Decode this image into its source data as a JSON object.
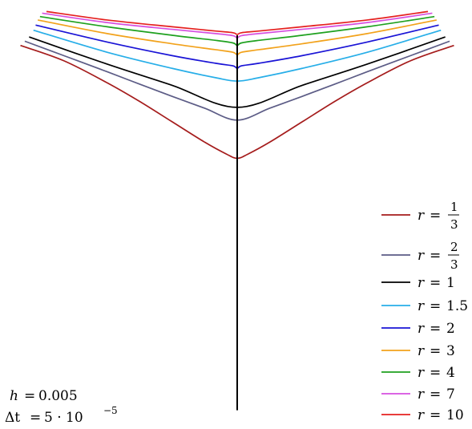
{
  "chart_data": {
    "type": "line",
    "title": "",
    "xlabel": "",
    "ylabel": "",
    "grid": false,
    "axes_visible": false,
    "legend_position": "right",
    "stem_x": 0.0,
    "series": [
      {
        "name": "r = 1/3",
        "r_num": "1",
        "r_den": "3",
        "color": "#a51c1c",
        "x": [
          -1.0,
          -0.8,
          -0.6,
          -0.45,
          -0.3,
          -0.15,
          -0.05,
          0.0,
          0.05,
          0.15,
          0.3,
          0.45,
          0.6,
          0.8,
          1.0
        ],
        "y": [
          -0.07,
          -0.16,
          -0.29,
          -0.4,
          -0.52,
          -0.64,
          -0.71,
          -0.735,
          -0.71,
          -0.64,
          -0.52,
          -0.4,
          -0.29,
          -0.16,
          -0.07
        ]
      },
      {
        "name": "r = 2/3",
        "r_num": "2",
        "r_den": "3",
        "color": "#5c5c86",
        "x": [
          -0.98,
          -0.8,
          -0.6,
          -0.45,
          -0.3,
          -0.15,
          0.0,
          0.15,
          0.3,
          0.45,
          0.6,
          0.8,
          0.98
        ],
        "y": [
          -0.045,
          -0.13,
          -0.225,
          -0.298,
          -0.37,
          -0.44,
          -0.51,
          -0.44,
          -0.37,
          -0.298,
          -0.225,
          -0.13,
          -0.045
        ]
      },
      {
        "name": "r = 1",
        "r_num": "",
        "r_den": "",
        "r_value": "1",
        "color": "#000000",
        "x": [
          -0.96,
          -0.6,
          -0.3,
          0.0,
          0.3,
          0.6,
          0.96
        ],
        "y": [
          -0.02,
          -0.18,
          -0.305,
          -0.435,
          -0.305,
          -0.18,
          -0.02
        ]
      },
      {
        "name": "r = 1.5",
        "r_num": "",
        "r_den": "",
        "r_value": "1.5",
        "color": "#27aee8",
        "x": [
          -0.94,
          -0.6,
          -0.3,
          -0.1,
          0.0,
          0.1,
          0.3,
          0.6,
          0.94
        ],
        "y": [
          0.02,
          -0.11,
          -0.205,
          -0.26,
          -0.28,
          -0.26,
          -0.205,
          -0.11,
          0.02
        ]
      },
      {
        "name": "r = 2",
        "r_num": "",
        "r_den": "",
        "r_value": "2",
        "color": "#1a14d6",
        "x": [
          -0.93,
          -0.6,
          -0.3,
          -0.1,
          -0.02,
          0.0,
          0.02,
          0.1,
          0.3,
          0.6,
          0.93
        ],
        "y": [
          0.05,
          -0.05,
          -0.13,
          -0.175,
          -0.19,
          -0.205,
          -0.19,
          -0.175,
          -0.13,
          -0.05,
          0.05
        ]
      },
      {
        "name": "r = 3",
        "r_num": "",
        "r_den": "",
        "r_value": "3",
        "color": "#f2a21b",
        "x": [
          -0.92,
          -0.6,
          -0.3,
          -0.1,
          -0.02,
          0.0,
          0.02,
          0.1,
          0.3,
          0.6,
          0.92
        ],
        "y": [
          0.08,
          0.0,
          -0.06,
          -0.095,
          -0.11,
          -0.125,
          -0.11,
          -0.095,
          -0.06,
          0.0,
          0.08
        ]
      },
      {
        "name": "r = 4",
        "r_num": "",
        "r_den": "",
        "r_value": "4",
        "color": "#1fa11f",
        "x": [
          -0.91,
          -0.6,
          -0.3,
          -0.1,
          -0.02,
          0.0,
          0.02,
          0.1,
          0.3,
          0.6,
          0.91
        ],
        "y": [
          0.1,
          0.04,
          -0.01,
          -0.04,
          -0.055,
          -0.07,
          -0.055,
          -0.04,
          -0.01,
          0.04,
          0.1
        ]
      },
      {
        "name": "r = 7",
        "r_num": "",
        "r_den": "",
        "r_value": "7",
        "color": "#d64fe0",
        "x": [
          -0.9,
          -0.6,
          -0.3,
          -0.1,
          -0.02,
          0.0,
          0.02,
          0.1,
          0.3,
          0.6,
          0.9
        ],
        "y": [
          0.12,
          0.065,
          0.025,
          0.0,
          -0.012,
          -0.025,
          -0.012,
          0.0,
          0.025,
          0.065,
          0.12
        ]
      },
      {
        "name": "r = 10",
        "r_num": "",
        "r_den": "",
        "r_value": "10",
        "color": "#e5201f",
        "x": [
          -0.88,
          -0.6,
          -0.3,
          -0.1,
          -0.02,
          0.0,
          0.02,
          0.1,
          0.3,
          0.6,
          0.88
        ],
        "y": [
          0.13,
          0.08,
          0.04,
          0.015,
          0.005,
          -0.005,
          0.005,
          0.015,
          0.04,
          0.08,
          0.13
        ]
      }
    ],
    "stem": {
      "color": "#000000",
      "y_top": -0.01,
      "y_bottom": -2.22
    },
    "xlim": [
      -1.05,
      1.05
    ],
    "ylim": [
      -2.25,
      0.16
    ]
  },
  "annotation": {
    "h_label": "h",
    "h_value": "0.005",
    "dt_label": "Δt",
    "dt_value": "5 · 10",
    "dt_exp": "−5"
  }
}
